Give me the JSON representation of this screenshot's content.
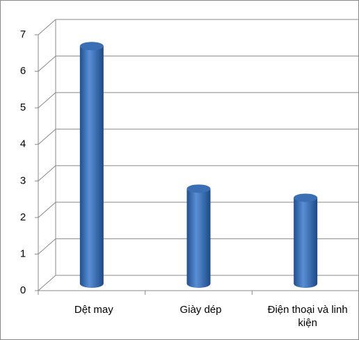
{
  "chart_data": {
    "type": "bar",
    "categories": [
      "Dệt may",
      "Giày dép",
      "Điện thoại và linh kiện"
    ],
    "values": [
      6.5,
      2.6,
      2.35
    ],
    "color": "#3a6fb5",
    "ylim": [
      0,
      7
    ],
    "yticks": [
      0,
      1,
      2,
      3,
      4,
      5,
      6,
      7
    ],
    "grid": true
  }
}
